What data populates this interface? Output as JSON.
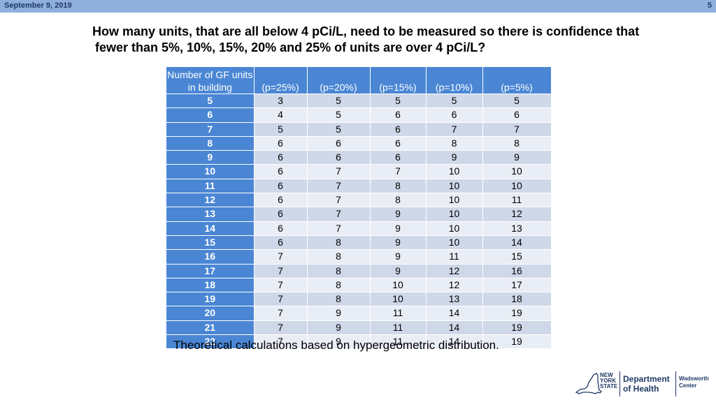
{
  "header": {
    "date": "September 9, 2019",
    "page_number": "5"
  },
  "title": {
    "line1": "How many units, that are all below 4 pCi/L, need to be measured so there is confidence that",
    "line2": "fewer than 5%, 10%, 15%, 20% and 25% of units are over 4 pCi/L?"
  },
  "table": {
    "columns": [
      "Number of GF units in building",
      "(p=25%)",
      "(p=20%)",
      "(p=15%)",
      "(p=10%)",
      "(p=5%)"
    ],
    "rows": [
      [
        "5",
        "3",
        "5",
        "5",
        "5",
        "5"
      ],
      [
        "6",
        "4",
        "5",
        "6",
        "6",
        "6"
      ],
      [
        "7",
        "5",
        "5",
        "6",
        "7",
        "7"
      ],
      [
        "8",
        "6",
        "6",
        "6",
        "8",
        "8"
      ],
      [
        "9",
        "6",
        "6",
        "6",
        "9",
        "9"
      ],
      [
        "10",
        "6",
        "7",
        "7",
        "10",
        "10"
      ],
      [
        "11",
        "6",
        "7",
        "8",
        "10",
        "10"
      ],
      [
        "12",
        "6",
        "7",
        "8",
        "10",
        "11"
      ],
      [
        "13",
        "6",
        "7",
        "9",
        "10",
        "12"
      ],
      [
        "14",
        "6",
        "7",
        "9",
        "10",
        "13"
      ],
      [
        "15",
        "6",
        "8",
        "9",
        "10",
        "14"
      ],
      [
        "16",
        "7",
        "8",
        "9",
        "11",
        "15"
      ],
      [
        "17",
        "7",
        "8",
        "9",
        "12",
        "16"
      ],
      [
        "18",
        "7",
        "8",
        "10",
        "12",
        "17"
      ],
      [
        "19",
        "7",
        "8",
        "10",
        "13",
        "18"
      ],
      [
        "20",
        "7",
        "9",
        "11",
        "14",
        "19"
      ],
      [
        "21",
        "7",
        "9",
        "11",
        "14",
        "19"
      ],
      [
        "22",
        "7",
        "9",
        "11",
        "14",
        "19"
      ]
    ]
  },
  "footnote": "Theoretical calculations based on hypergeometric distribution.",
  "logo": {
    "state_lines": [
      "NEW",
      "YORK",
      "STATE"
    ],
    "dept_lines": [
      "Department",
      "of Health"
    ],
    "center_lines": [
      "Wadsworth",
      "Center"
    ]
  },
  "colors": {
    "header_bar": "#8fb0dd",
    "table_header": "#4a86d4",
    "row_dark": "#cfd8e9",
    "row_light": "#e9edf5",
    "logo_navy": "#1f3864"
  }
}
